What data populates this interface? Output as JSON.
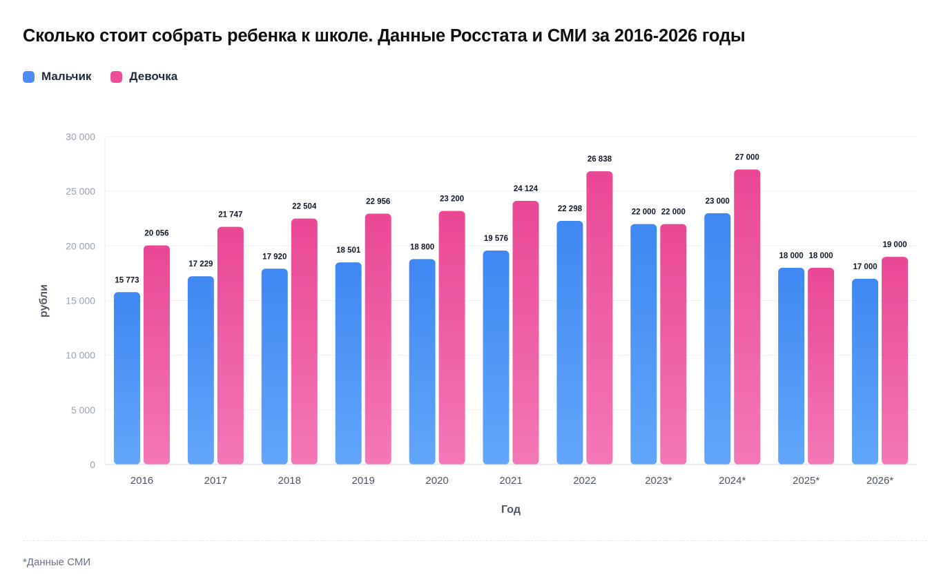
{
  "header": {
    "title": "Сколько стоит собрать ребенка к школе. Данные Росстата и СМИ за 2016-2026 годы"
  },
  "legend": [
    {
      "label": "Мальчик",
      "color": "#4a8ef5"
    },
    {
      "label": "Девочка",
      "color": "#ee4d9b"
    }
  ],
  "footnote": "*Данные СМИ",
  "chart_data": {
    "type": "bar",
    "title": "Сколько стоит собрать ребенка к школе. Данные Росстата и СМИ за 2016-2026 годы",
    "xlabel": "Год",
    "ylabel": "рубли",
    "ylim": [
      0,
      30000
    ],
    "yticks": [
      0,
      5000,
      10000,
      15000,
      20000,
      25000,
      30000
    ],
    "ytick_labels": [
      "0",
      "5 000",
      "10 000",
      "15 000",
      "20 000",
      "25 000",
      "30 000"
    ],
    "grid": true,
    "legend_position": "top-left",
    "categories": [
      "2016",
      "2017",
      "2018",
      "2019",
      "2020",
      "2021",
      "2022",
      "2023*",
      "2024*",
      "2025*",
      "2026*"
    ],
    "series": [
      {
        "name": "Мальчик",
        "color": "#4a8ef5",
        "values": [
          15773,
          17229,
          17920,
          18501,
          18800,
          19576,
          22298,
          22000,
          23000,
          18000,
          17000
        ],
        "labels": [
          "15 773",
          "17 229",
          "17 920",
          "18 501",
          "18 800",
          "19 576",
          "22 298",
          "22 000",
          "23 000",
          "18 000",
          "17 000"
        ]
      },
      {
        "name": "Девочка",
        "color": "#ee4d9b",
        "values": [
          20056,
          21747,
          22504,
          22956,
          23200,
          24124,
          26838,
          22000,
          27000,
          18000,
          19000
        ],
        "labels": [
          "20 056",
          "21 747",
          "22 504",
          "22 956",
          "23 200",
          "24 124",
          "26 838",
          "22 000",
          "27 000",
          "18 000",
          "19 000"
        ]
      }
    ]
  }
}
